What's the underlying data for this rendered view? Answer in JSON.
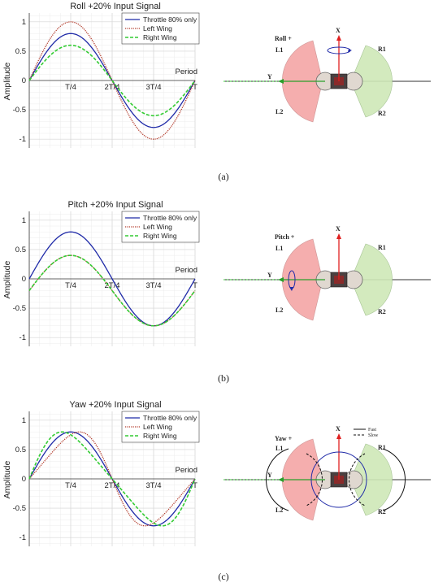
{
  "colors": {
    "throttle": "#1f2aa8",
    "left": "#b23a2a",
    "right": "#33cc33",
    "left_wing": "#f4a6a6",
    "right_wing": "#cfe8b8",
    "axis_arrow": "#e02020",
    "rot": "#1f2aa8"
  },
  "chart_data": [
    {
      "type": "line",
      "title": "Roll +20% Input Signal",
      "xlabel": "",
      "ylabel": "Amplitude",
      "xlim": [
        0,
        1
      ],
      "ylim": [
        -1.15,
        1.15
      ],
      "x_tick_labels": [
        "T/4",
        "2T/4",
        "3T/4",
        "T"
      ],
      "y_tick_labels": [
        "1",
        "0.5",
        "0",
        "-0.5",
        "-1"
      ],
      "annotation": "Period",
      "series": [
        {
          "name": "Throttle 80% only",
          "amplitude": 0.8,
          "shape": "sine"
        },
        {
          "name": "Left Wing",
          "amplitude": 1.0,
          "shape": "sine"
        },
        {
          "name": "Right Wing",
          "amplitude": 0.6,
          "shape": "sine"
        }
      ],
      "subfig": "(a)"
    },
    {
      "type": "line",
      "title": "Pitch +20% Input Signal",
      "xlabel": "",
      "ylabel": "Amplitude",
      "xlim": [
        0,
        1
      ],
      "ylim": [
        -1.15,
        1.15
      ],
      "x_tick_labels": [
        "T/4",
        "2T/4",
        "3T/4",
        "T"
      ],
      "y_tick_labels": [
        "1",
        "0.5",
        "0",
        "-0.5",
        "-1"
      ],
      "annotation": "Period",
      "series": [
        {
          "name": "Throttle 80% only",
          "amplitude": 0.8,
          "shape": "sine"
        },
        {
          "name": "Left Wing",
          "amplitude": 0.6,
          "offset": -0.2,
          "shape": "sine"
        },
        {
          "name": "Right Wing",
          "amplitude": 0.6,
          "offset": -0.2,
          "shape": "sine"
        }
      ],
      "subfig": "(b)"
    },
    {
      "type": "line",
      "title": "Yaw +20% Input Signal",
      "xlabel": "",
      "ylabel": "Amplitude",
      "xlim": [
        0,
        1
      ],
      "ylim": [
        -1.15,
        1.15
      ],
      "x_tick_labels": [
        "T/4",
        "2T/4",
        "3T/4",
        "T"
      ],
      "y_tick_labels": [
        "1",
        "0.5",
        "0",
        "-0.5",
        "-1"
      ],
      "annotation": "Period",
      "series": [
        {
          "name": "Throttle 80% only",
          "amplitude": 0.8,
          "shape": "sine"
        },
        {
          "name": "Left Wing",
          "amplitude": 0.8,
          "phase": 0.2,
          "shape": "skewed-late"
        },
        {
          "name": "Right Wing",
          "amplitude": 0.8,
          "phase": -0.2,
          "shape": "skewed-early"
        }
      ],
      "subfig": "(c)"
    }
  ],
  "diagrams": [
    {
      "mode": "Roll +",
      "labels": {
        "x": "X",
        "y": "Y",
        "l1": "L1",
        "l2": "L2",
        "r1": "R1",
        "r2": "R2"
      }
    },
    {
      "mode": "Pitch +",
      "labels": {
        "x": "X",
        "y": "Y",
        "l1": "L1",
        "l2": "L2",
        "r1": "R1",
        "r2": "R2"
      }
    },
    {
      "mode": "Yaw +",
      "labels": {
        "x": "X",
        "y": "Y",
        "l1": "L1",
        "l2": "L2",
        "r1": "R1",
        "r2": "R2"
      },
      "legend": {
        "fast": "Fast",
        "slow": "Slow"
      }
    }
  ]
}
